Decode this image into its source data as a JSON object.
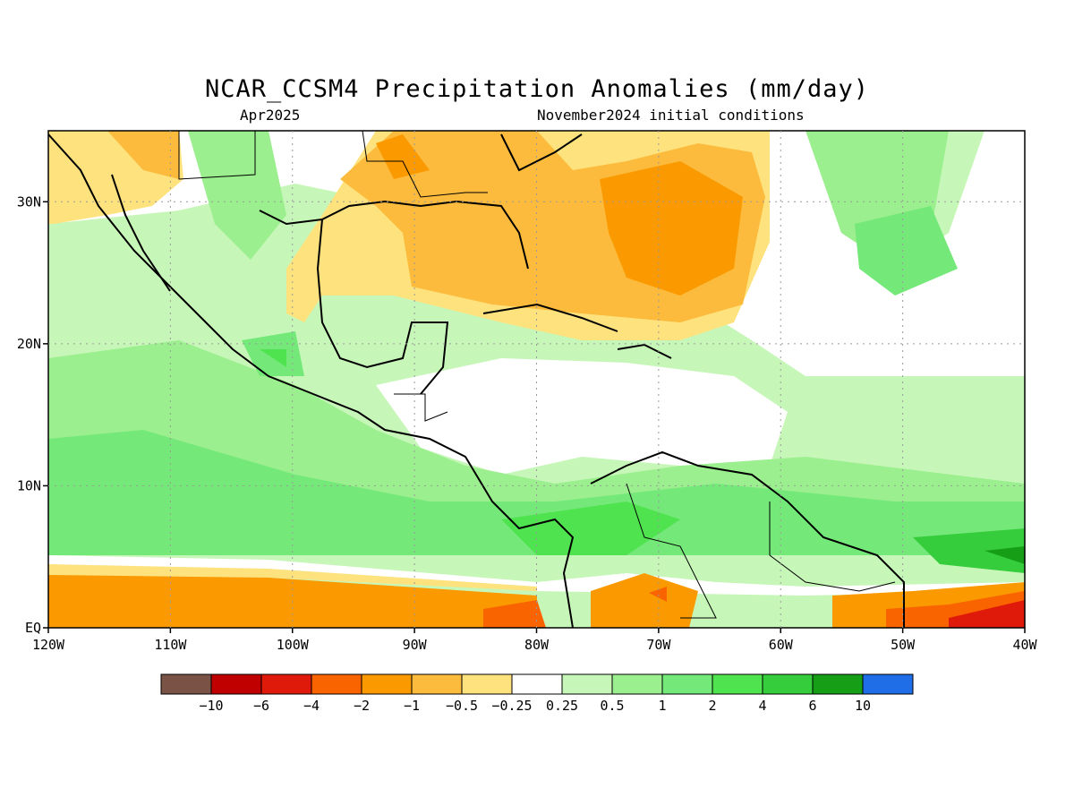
{
  "title": "NCAR_CCSM4 Precipitation Anomalies (mm/day)",
  "valid_month": "Apr2025",
  "init_label": "November2024 initial conditions",
  "lon_labels": [
    "120W",
    "110W",
    "100W",
    "90W",
    "80W",
    "70W",
    "60W",
    "50W",
    "40W"
  ],
  "lat_labels": [
    "EQ",
    "10N",
    "20N",
    "30N"
  ],
  "colorbar": {
    "colors": [
      "#7a5346",
      "#c00000",
      "#e01a0a",
      "#fa6400",
      "#fa9a00",
      "#fcbb3c",
      "#fde27e",
      "#ffffff",
      "#c7f7b8",
      "#9bef8e",
      "#74e97a",
      "#50e350",
      "#36cd3c",
      "#169f16",
      "#1f6ee8"
    ],
    "labels": [
      "−10",
      "−6",
      "−4",
      "−2",
      "−1",
      "−0.5",
      "−0.25",
      "0.25",
      "0.5",
      "1",
      "2",
      "4",
      "6",
      "10"
    ]
  }
}
